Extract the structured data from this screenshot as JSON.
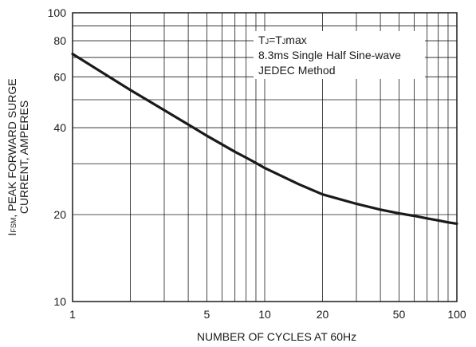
{
  "chart_data": {
    "type": "line",
    "x_scale": "log",
    "y_scale": "log",
    "xlim": [
      1,
      100
    ],
    "ylim": [
      10,
      100
    ],
    "xlabel": "NUMBER OF CYCLES AT 60Hz",
    "ylabel_line1_symbol": "I",
    "ylabel_line1_subscript": "FSM",
    "ylabel_line1_rest": ", PEAK FORWARD SURGE",
    "ylabel_line2": "CURRENT, AMPERES",
    "x_ticks": [
      1,
      5,
      10,
      20,
      50,
      100
    ],
    "x_tick_labels": [
      "1",
      "5",
      "10",
      "20",
      "50",
      "100"
    ],
    "y_ticks": [
      10,
      20,
      40,
      60,
      80,
      100
    ],
    "y_tick_labels": [
      "10",
      "20",
      "40",
      "60",
      "80",
      "100"
    ],
    "grid": true,
    "annotation": {
      "line1_T": "T",
      "line1_J": "J",
      "line1_eq": "=T",
      "line1_J2": "J",
      "line1_max": "max",
      "line2": "8.3ms Single Half Sine-wave",
      "line3": "JEDEC Method"
    },
    "series": [
      {
        "x": [
          1,
          2,
          3,
          4,
          5,
          6,
          7,
          8,
          9,
          10,
          15,
          20,
          30,
          40,
          50,
          60,
          70,
          80,
          90,
          100
        ],
        "y": [
          72,
          54,
          46,
          41,
          37.5,
          35,
          33,
          31.5,
          30.2,
          29,
          25.5,
          23.5,
          21.8,
          20.8,
          20.2,
          19.8,
          19.4,
          19.1,
          18.8,
          18.6
        ],
        "color": "#1a1a1a"
      }
    ]
  }
}
